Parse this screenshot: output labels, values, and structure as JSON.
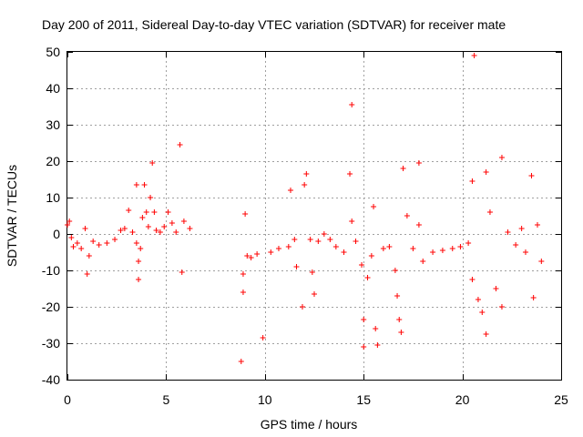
{
  "colors": {
    "series": "#ff0000",
    "grid": "#a0a0a0",
    "axes": "#000000",
    "background": "#ffffff"
  },
  "chart_data": {
    "type": "scatter",
    "title": "Day 200 of 2011, Sidereal Day-to-day VTEC variation (SDTVAR) for receiver mate",
    "xlabel": "GPS time / hours",
    "ylabel": "SDTVAR / TECUs",
    "xlim": [
      0,
      25
    ],
    "ylim": [
      -40,
      50
    ],
    "xticks": [
      0,
      5,
      10,
      15,
      20,
      25
    ],
    "yticks": [
      -40,
      -30,
      -20,
      -10,
      0,
      10,
      20,
      30,
      40,
      50
    ],
    "grid": true,
    "marker": "plus",
    "series": [
      {
        "name": "SDTVAR",
        "points": [
          [
            0.0,
            2.5
          ],
          [
            0.1,
            3.5
          ],
          [
            0.2,
            -1.0
          ],
          [
            0.3,
            -3.5
          ],
          [
            0.5,
            -2.5
          ],
          [
            0.7,
            -4.0
          ],
          [
            0.9,
            1.5
          ],
          [
            1.0,
            -11.0
          ],
          [
            1.1,
            -6.0
          ],
          [
            1.3,
            -2.0
          ],
          [
            1.6,
            -3.0
          ],
          [
            2.0,
            -2.5
          ],
          [
            2.4,
            -1.5
          ],
          [
            2.7,
            1.0
          ],
          [
            2.9,
            1.5
          ],
          [
            3.1,
            6.5
          ],
          [
            3.3,
            0.5
          ],
          [
            3.5,
            13.5
          ],
          [
            3.5,
            -2.5
          ],
          [
            3.6,
            -12.5
          ],
          [
            3.6,
            -7.5
          ],
          [
            3.7,
            -4.0
          ],
          [
            3.8,
            4.5
          ],
          [
            3.9,
            13.5
          ],
          [
            4.0,
            6.0
          ],
          [
            4.1,
            2.0
          ],
          [
            4.2,
            10.0
          ],
          [
            4.3,
            19.5
          ],
          [
            4.4,
            6.0
          ],
          [
            4.5,
            1.0
          ],
          [
            4.7,
            0.5
          ],
          [
            4.9,
            2.0
          ],
          [
            5.1,
            6.0
          ],
          [
            5.3,
            3.0
          ],
          [
            5.5,
            0.5
          ],
          [
            5.7,
            24.5
          ],
          [
            5.8,
            -10.5
          ],
          [
            5.9,
            3.5
          ],
          [
            6.2,
            1.5
          ],
          [
            8.8,
            -35.0
          ],
          [
            8.9,
            -16.0
          ],
          [
            8.9,
            -11.0
          ],
          [
            9.0,
            5.5
          ],
          [
            9.1,
            -6.0
          ],
          [
            9.3,
            -6.5
          ],
          [
            9.6,
            -5.5
          ],
          [
            9.9,
            -28.5
          ],
          [
            10.3,
            -5.0
          ],
          [
            10.7,
            -4.0
          ],
          [
            11.2,
            -3.5
          ],
          [
            11.3,
            12.0
          ],
          [
            11.5,
            -1.5
          ],
          [
            11.6,
            -9.0
          ],
          [
            11.9,
            -20.0
          ],
          [
            12.0,
            13.5
          ],
          [
            12.1,
            16.5
          ],
          [
            12.3,
            -1.5
          ],
          [
            12.4,
            -10.5
          ],
          [
            12.5,
            -16.5
          ],
          [
            12.7,
            -2.0
          ],
          [
            13.0,
            0.0
          ],
          [
            13.3,
            -1.5
          ],
          [
            13.6,
            -3.5
          ],
          [
            14.0,
            -5.0
          ],
          [
            14.3,
            16.5
          ],
          [
            14.4,
            35.5
          ],
          [
            14.4,
            3.5
          ],
          [
            14.6,
            -2.0
          ],
          [
            14.9,
            -8.5
          ],
          [
            15.0,
            -23.5
          ],
          [
            15.0,
            -31.0
          ],
          [
            15.2,
            -12.0
          ],
          [
            15.4,
            -6.0
          ],
          [
            15.5,
            7.5
          ],
          [
            15.6,
            -26.0
          ],
          [
            15.7,
            -30.5
          ],
          [
            16.0,
            -4.0
          ],
          [
            16.3,
            -3.5
          ],
          [
            16.6,
            -10.0
          ],
          [
            16.7,
            -17.0
          ],
          [
            16.8,
            -23.5
          ],
          [
            16.9,
            -27.0
          ],
          [
            17.0,
            18.0
          ],
          [
            17.2,
            5.0
          ],
          [
            17.5,
            -4.0
          ],
          [
            17.8,
            19.5
          ],
          [
            17.8,
            2.5
          ],
          [
            18.0,
            -7.5
          ],
          [
            18.5,
            -5.0
          ],
          [
            19.0,
            -4.5
          ],
          [
            19.5,
            -4.0
          ],
          [
            19.9,
            -3.5
          ],
          [
            20.3,
            -2.5
          ],
          [
            20.5,
            14.5
          ],
          [
            20.5,
            -12.5
          ],
          [
            20.6,
            49.0
          ],
          [
            20.8,
            -18.0
          ],
          [
            21.0,
            -21.5
          ],
          [
            21.2,
            17.0
          ],
          [
            21.2,
            -27.5
          ],
          [
            21.4,
            6.0
          ],
          [
            21.7,
            -15.0
          ],
          [
            22.0,
            21.0
          ],
          [
            22.0,
            -20.0
          ],
          [
            22.3,
            0.5
          ],
          [
            22.7,
            -3.0
          ],
          [
            23.0,
            1.5
          ],
          [
            23.2,
            -5.0
          ],
          [
            23.5,
            16.0
          ],
          [
            23.6,
            -17.5
          ],
          [
            23.8,
            2.5
          ],
          [
            24.0,
            -7.5
          ]
        ]
      }
    ]
  }
}
